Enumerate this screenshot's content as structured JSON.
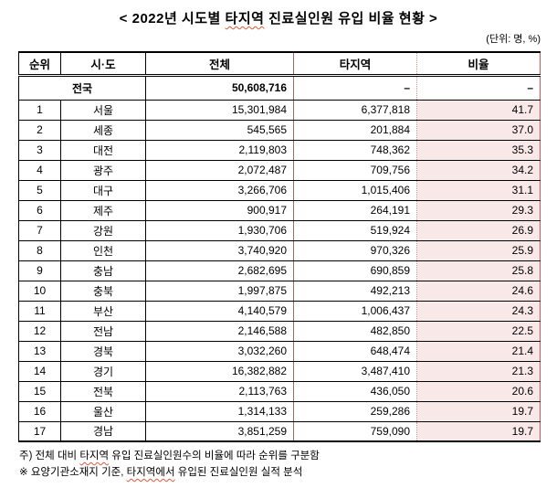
{
  "title": {
    "prefix": "< 2022년 시도별 ",
    "highlight": "타지역",
    "suffix": " 진료실인원 유입 비율 현황 >"
  },
  "unit_note": "(단위: 명, %)",
  "table": {
    "headers": [
      "순위",
      "시·도",
      "전체",
      "타지역",
      "비율"
    ],
    "summary_row": {
      "label": "전국",
      "total": "50,608,716",
      "other_region": "–",
      "ratio": "–"
    },
    "rows": [
      {
        "rank": "1",
        "region": "서울",
        "total": "15,301,984",
        "other_region": "6,377,818",
        "ratio": "41.7"
      },
      {
        "rank": "2",
        "region": "세종",
        "total": "545,565",
        "other_region": "201,884",
        "ratio": "37.0"
      },
      {
        "rank": "3",
        "region": "대전",
        "total": "2,119,803",
        "other_region": "748,362",
        "ratio": "35.3"
      },
      {
        "rank": "4",
        "region": "광주",
        "total": "2,072,487",
        "other_region": "709,756",
        "ratio": "34.2"
      },
      {
        "rank": "5",
        "region": "대구",
        "total": "3,266,706",
        "other_region": "1,015,406",
        "ratio": "31.1"
      },
      {
        "rank": "6",
        "region": "제주",
        "total": "900,917",
        "other_region": "264,191",
        "ratio": "29.3"
      },
      {
        "rank": "7",
        "region": "강원",
        "total": "1,930,706",
        "other_region": "519,924",
        "ratio": "26.9"
      },
      {
        "rank": "8",
        "region": "인천",
        "total": "3,740,920",
        "other_region": "970,326",
        "ratio": "25.9"
      },
      {
        "rank": "9",
        "region": "충남",
        "total": "2,682,695",
        "other_region": "690,859",
        "ratio": "25.8"
      },
      {
        "rank": "10",
        "region": "충북",
        "total": "1,997,875",
        "other_region": "492,213",
        "ratio": "24.6"
      },
      {
        "rank": "11",
        "region": "부산",
        "total": "4,140,579",
        "other_region": "1,006,437",
        "ratio": "24.3"
      },
      {
        "rank": "12",
        "region": "전남",
        "total": "2,146,588",
        "other_region": "482,850",
        "ratio": "22.5"
      },
      {
        "rank": "13",
        "region": "경북",
        "total": "3,032,260",
        "other_region": "648,474",
        "ratio": "21.4"
      },
      {
        "rank": "14",
        "region": "경기",
        "total": "16,382,882",
        "other_region": "3,487,410",
        "ratio": "21.3"
      },
      {
        "rank": "15",
        "region": "전북",
        "total": "2,113,763",
        "other_region": "436,050",
        "ratio": "20.6"
      },
      {
        "rank": "16",
        "region": "울산",
        "total": "1,314,133",
        "other_region": "259,286",
        "ratio": "19.7"
      },
      {
        "rank": "17",
        "region": "경남",
        "total": "3,851,259",
        "other_region": "759,090",
        "ratio": "19.7"
      }
    ]
  },
  "footnotes": [
    {
      "prefix": "주) 전체 대비 ",
      "highlight": "타지역",
      "suffix": " 유입 진료실인원수의 비율에 따라 순위를 구분함"
    },
    {
      "prefix": "※ 요양기관소재지 기준, ",
      "highlight": "타지역에서",
      "suffix": " 유입된 진료실인원 실적 분석"
    }
  ],
  "colors": {
    "ratio_col_bg": "#f9e8e8",
    "right_border": "#cc5555",
    "dotted_divider": "#dc8a8a",
    "total_divider": "#9e6b6b",
    "spellcheck_underline": "#e05a3a"
  }
}
